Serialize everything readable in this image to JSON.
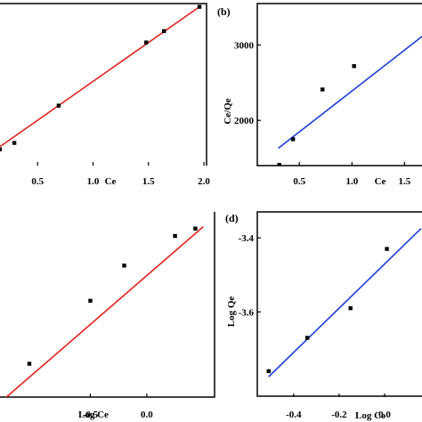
{
  "chart_data": [
    {
      "type": "scatter",
      "panel_label": "",
      "xlabel": "Ce",
      "ylabel": "",
      "xlim": [
        0.0,
        2.0
      ],
      "ylim": [
        0.0,
        1.0
      ],
      "x_ticks": [
        "0.5",
        "1.0",
        "1.5",
        "2.0"
      ],
      "y_ticks": [],
      "line_color": "#e0231c",
      "fit": [
        [
          0.0,
          0.04
        ],
        [
          1.96,
          0.98
        ]
      ],
      "series": [
        {
          "x": [
            0.05,
            0.16,
            0.29,
            0.69,
            1.48,
            1.64,
            1.96
          ],
          "y": [
            0.04,
            0.1,
            0.14,
            0.37,
            0.76,
            0.83,
            0.98
          ]
        }
      ]
    },
    {
      "type": "scatter",
      "panel_label": "(b)",
      "xlabel": "Ce",
      "ylabel": "Ce/Qe",
      "xlim": [
        0.1,
        1.7
      ],
      "ylim": [
        1400,
        3550
      ],
      "x_ticks": [
        "0.5",
        "1.0",
        "1.5"
      ],
      "y_ticks": [
        "2000",
        "3000"
      ],
      "line_color": "#1a3fd6",
      "fit": [
        [
          0.3,
          1630
        ],
        [
          1.7,
          3150
        ]
      ],
      "series": [
        {
          "x": [
            0.31,
            0.44,
            0.72,
            1.02
          ],
          "y": [
            1410,
            1750,
            2410,
            2720
          ]
        }
      ]
    },
    {
      "type": "scatter",
      "panel_label": "",
      "xlabel": "Log Ce",
      "ylabel": "",
      "xlim": [
        -1.3,
        0.6
      ],
      "ylim": [
        0.0,
        1.0
      ],
      "x_ticks": [
        "-0.5",
        "0.0"
      ],
      "y_ticks": [],
      "line_color": "#e0231c",
      "fit": [
        [
          -1.3,
          -0.03
        ],
        [
          0.5,
          0.92
        ]
      ],
      "series": [
        {
          "x": [
            -1.04,
            -0.5,
            -0.2,
            0.25,
            0.43
          ],
          "y": [
            0.18,
            0.52,
            0.71,
            0.87,
            0.91
          ]
        }
      ]
    },
    {
      "type": "scatter",
      "panel_label": "(d)",
      "xlabel": "Log Ce",
      "ylabel": "Log Qe",
      "xlim": [
        -0.56,
        0.18
      ],
      "ylim": [
        -3.83,
        -3.33
      ],
      "x_ticks": [
        "-0.4",
        "-0.2",
        "0.0"
      ],
      "y_ticks": [
        "-3.4",
        "-3.6"
      ],
      "line_color": "#1a3fd6",
      "fit": [
        [
          -0.51,
          -3.775
        ],
        [
          0.16,
          -3.375
        ]
      ],
      "series": [
        {
          "x": [
            -0.51,
            -0.34,
            -0.15,
            0.01
          ],
          "y": [
            -3.76,
            -3.67,
            -3.59,
            -3.43
          ]
        }
      ]
    }
  ]
}
